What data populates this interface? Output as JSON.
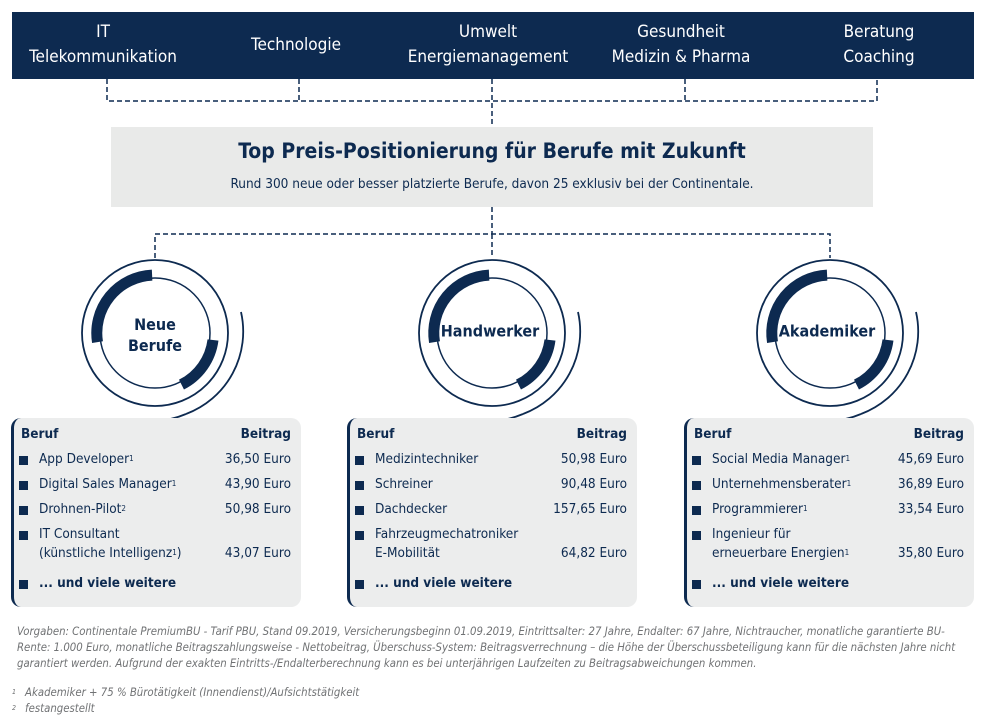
{
  "categories": [
    {
      "line1": "IT",
      "line2": "Telekommunikation"
    },
    {
      "line1": "Technologie",
      "line2": ""
    },
    {
      "line1": "Umwelt",
      "line2": "Energiemanagement"
    },
    {
      "line1": "Gesundheit",
      "line2": "Medizin & Pharma"
    },
    {
      "line1": "Beratung",
      "line2": "Coaching"
    }
  ],
  "hero": {
    "title": "Top Preis-Positionierung für Berufe mit Zukunft",
    "subtitle": "Rund 300 neue oder besser platzierte Berufe, davon 25 exklusiv bei der Continentale."
  },
  "groups": [
    {
      "label_line1": "Neue",
      "label_line2": "Berufe",
      "header_job": "Beruf",
      "header_price": "Beitrag",
      "rows": [
        {
          "job": "App Developer",
          "sup": "1",
          "job2": "",
          "sup2": "",
          "price": "36,50 Euro"
        },
        {
          "job": "Digital Sales Manager",
          "sup": "1",
          "job2": "",
          "sup2": "",
          "price": "43,90 Euro"
        },
        {
          "job": "Drohnen-Pilot",
          "sup": "2",
          "job2": "",
          "sup2": "",
          "price": "50,98 Euro"
        },
        {
          "job": "IT Consultant",
          "sup": "",
          "job2": "(künstliche Intelligenz",
          "sup2": "1",
          "job2_end": ")",
          "price": "43,07 Euro"
        }
      ],
      "more": "... und viele weitere"
    },
    {
      "label_line1": "Handwerker",
      "label_line2": "",
      "header_job": "Beruf",
      "header_price": "Beitrag",
      "rows": [
        {
          "job": "Medizintechniker",
          "sup": "",
          "job2": "",
          "sup2": "",
          "price": "50,98 Euro"
        },
        {
          "job": "Schreiner",
          "sup": "",
          "job2": "",
          "sup2": "",
          "price": "90,48 Euro"
        },
        {
          "job": "Dachdecker",
          "sup": "",
          "job2": "",
          "sup2": "",
          "price": "157,65 Euro"
        },
        {
          "job": "Fahrzeugmechatroniker",
          "sup": "",
          "job2": "E-Mobilität",
          "sup2": "",
          "job2_end": "",
          "price": "64,82 Euro"
        }
      ],
      "more": "... und viele weitere"
    },
    {
      "label_line1": "Akademiker",
      "label_line2": "",
      "header_job": "Beruf",
      "header_price": "Beitrag",
      "rows": [
        {
          "job": "Social Media Manager",
          "sup": "1",
          "job2": "",
          "sup2": "",
          "price": "45,69 Euro"
        },
        {
          "job": "Unternehmensberater",
          "sup": "1",
          "job2": "",
          "sup2": "",
          "price": "36,89 Euro"
        },
        {
          "job": "Programmierer",
          "sup": "1",
          "job2": "",
          "sup2": "",
          "price": "33,54 Euro"
        },
        {
          "job": "Ingenieur für",
          "sup": "",
          "job2": "erneuerbare Energien",
          "sup2": "1",
          "job2_end": "",
          "price": "35,80 Euro"
        }
      ],
      "more": "... und viele weitere"
    }
  ],
  "footnote_text": "Vorgaben: Continentale PremiumBU - Tarif PBU, Stand 09.2019, Versicherungsbeginn 01.09.2019, Eintrittsalter: 27 Jahre, Endalter: 67 Jahre, Nichtraucher, monatliche garantierte BU-Rente: 1.000 Euro, monatliche Beitragszahlungsweise - Nettobeitrag, Überschuss-System: Beitragsverrechnung – die Höhe der Überschussbeteiligung kann für die nächsten Jahre nicht garantiert werden. Aufgrund der exakten Eintritts-/Endalterberechnung kann es  bei unterjährigen Laufzeiten zu Beitragsabweichungen kommen.",
  "footnotes": [
    {
      "mark": "1",
      "text": "Akademiker + 75 % Bürotätigkeit (Innendienst)/Aufsichtstätigkeit"
    },
    {
      "mark": "2",
      "text": "festangestellt"
    }
  ],
  "colors": {
    "navy": "#0d2a50",
    "panel": "#eceded",
    "hero": "#e9eae9",
    "footnote": "#707274"
  }
}
